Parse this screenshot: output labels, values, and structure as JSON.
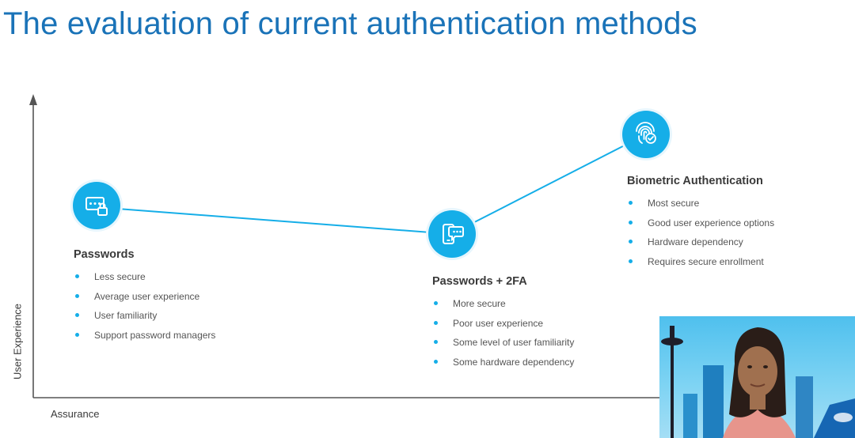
{
  "slide": {
    "title": "The evaluation of current authentication methods"
  },
  "axes": {
    "y_label": "User Experience",
    "x_label": "Assurance"
  },
  "nodes": [
    {
      "title": "Passwords",
      "icon": "password-lock-icon",
      "bullets": [
        "Less secure",
        "Average user experience",
        "User familiarity",
        "Support password managers"
      ]
    },
    {
      "title": "Passwords + 2FA",
      "icon": "phone-message-icon",
      "bullets": [
        "More secure",
        "Poor user experience",
        "Some level of user familiarity",
        "Some hardware dependency"
      ]
    },
    {
      "title": "Biometric Authentication",
      "icon": "fingerprint-check-icon",
      "bullets": [
        "Most secure",
        "Good user experience options",
        "Hardware dependency",
        "Requires secure enrollment"
      ]
    }
  ],
  "colors": {
    "title": "#1a73b8",
    "accent": "#15aee8",
    "axis": "#555555",
    "text": "#3a3a3a"
  },
  "webcam": {
    "overlay": "presenter-video-thumbnail"
  }
}
